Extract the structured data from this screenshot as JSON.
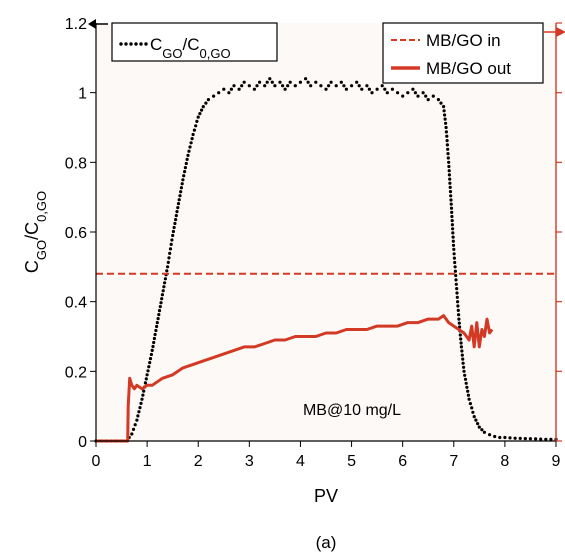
{
  "chart_data": {
    "type": "line",
    "xlabel": "PV",
    "ylabel": "C_GO/C_0,GO",
    "ylabel_parts": {
      "main": "C",
      "sub1": "GO",
      "slash": "/C",
      "sub2": "0,GO"
    },
    "xlim": [
      0,
      9
    ],
    "ylim": [
      0,
      1.2
    ],
    "x_ticks": [
      "0",
      "1",
      "2",
      "3",
      "4",
      "5",
      "6",
      "7",
      "8",
      "9"
    ],
    "y_ticks": [
      "0",
      "0.2",
      "0.4",
      "0.6",
      "0.8",
      "1",
      "1.2"
    ],
    "grid": false,
    "annotation": "MB@10 mg/L",
    "caption": "(a)",
    "legend_left": {
      "placement": "top-left",
      "entries": [
        {
          "name": "C_GO/C_0,GO",
          "main": "C",
          "sub1": "GO",
          "slash": "/C",
          "sub2": "0,GO",
          "style": "dotted",
          "color": "#000000"
        }
      ]
    },
    "legend_right": {
      "placement": "top-right",
      "entries": [
        {
          "name": "MB/GO in",
          "style": "dashed",
          "color": "#d33a25"
        },
        {
          "name": "MB/GO out",
          "style": "solid",
          "color": "#d33a25"
        }
      ]
    },
    "series": [
      {
        "name": "C_GO/C_0,GO",
        "style": "dotted",
        "color": "#000000",
        "x": [
          0.0,
          0.2,
          0.4,
          0.6,
          0.7,
          0.8,
          0.9,
          1.0,
          1.1,
          1.2,
          1.3,
          1.4,
          1.5,
          1.6,
          1.7,
          1.8,
          1.9,
          2.0,
          2.1,
          2.2,
          2.3,
          2.4,
          2.5,
          2.6,
          2.7,
          2.8,
          2.9,
          3.0,
          3.1,
          3.2,
          3.3,
          3.4,
          3.5,
          3.6,
          3.7,
          3.8,
          3.9,
          4.0,
          4.1,
          4.2,
          4.3,
          4.4,
          4.5,
          4.6,
          4.7,
          4.8,
          4.9,
          5.0,
          5.1,
          5.2,
          5.3,
          5.4,
          5.5,
          5.6,
          5.7,
          5.8,
          5.9,
          6.0,
          6.1,
          6.2,
          6.3,
          6.4,
          6.5,
          6.6,
          6.7,
          6.8,
          6.85,
          6.9,
          6.95,
          7.0,
          7.05,
          7.1,
          7.15,
          7.2,
          7.3,
          7.4,
          7.5,
          7.6,
          7.7,
          7.8,
          7.9,
          8.0,
          8.2,
          8.4,
          8.6,
          8.8,
          9.0
        ],
        "y": [
          0.0,
          0.0,
          0.0,
          0.0,
          0.02,
          0.06,
          0.12,
          0.19,
          0.26,
          0.34,
          0.42,
          0.5,
          0.59,
          0.67,
          0.75,
          0.82,
          0.88,
          0.93,
          0.96,
          0.98,
          0.99,
          1.0,
          1.01,
          1.0,
          1.02,
          1.01,
          1.03,
          1.02,
          1.01,
          1.03,
          1.02,
          1.04,
          1.02,
          1.03,
          1.01,
          1.03,
          1.02,
          1.03,
          1.04,
          1.02,
          1.03,
          1.02,
          1.01,
          1.03,
          1.02,
          1.03,
          1.01,
          1.02,
          1.03,
          1.01,
          1.02,
          1.0,
          1.01,
          1.02,
          1.0,
          1.01,
          1.0,
          0.99,
          1.0,
          1.01,
          0.99,
          1.0,
          0.98,
          0.99,
          0.98,
          0.96,
          0.9,
          0.8,
          0.68,
          0.55,
          0.45,
          0.35,
          0.27,
          0.2,
          0.12,
          0.07,
          0.04,
          0.025,
          0.018,
          0.013,
          0.01,
          0.01,
          0.008,
          0.007,
          0.006,
          0.005,
          0.005
        ]
      },
      {
        "name": "MB/GO in",
        "style": "dashed",
        "color": "#d33a25",
        "x": [
          0,
          9
        ],
        "y": [
          0.48,
          0.48
        ]
      },
      {
        "name": "MB/GO out",
        "style": "solid",
        "color": "#d33a25",
        "x": [
          0.0,
          0.5,
          0.62,
          0.63,
          0.66,
          0.7,
          0.75,
          0.8,
          0.9,
          1.0,
          1.1,
          1.2,
          1.3,
          1.5,
          1.7,
          1.9,
          2.1,
          2.3,
          2.5,
          2.7,
          2.9,
          3.1,
          3.3,
          3.5,
          3.7,
          3.9,
          4.1,
          4.3,
          4.5,
          4.7,
          4.9,
          5.1,
          5.3,
          5.5,
          5.7,
          5.9,
          6.1,
          6.3,
          6.5,
          6.7,
          6.8,
          6.9,
          7.0,
          7.1,
          7.2,
          7.3,
          7.35,
          7.4,
          7.45,
          7.5,
          7.55,
          7.6,
          7.65,
          7.7,
          7.75
        ],
        "y": [
          0.0,
          0.0,
          0.0,
          0.1,
          0.18,
          0.16,
          0.15,
          0.16,
          0.15,
          0.16,
          0.16,
          0.17,
          0.18,
          0.19,
          0.21,
          0.22,
          0.23,
          0.24,
          0.25,
          0.26,
          0.27,
          0.27,
          0.28,
          0.29,
          0.29,
          0.3,
          0.3,
          0.3,
          0.31,
          0.31,
          0.32,
          0.32,
          0.32,
          0.33,
          0.33,
          0.33,
          0.34,
          0.34,
          0.35,
          0.35,
          0.36,
          0.34,
          0.33,
          0.32,
          0.31,
          0.29,
          0.33,
          0.27,
          0.34,
          0.27,
          0.32,
          0.3,
          0.35,
          0.31,
          0.32
        ]
      }
    ]
  }
}
